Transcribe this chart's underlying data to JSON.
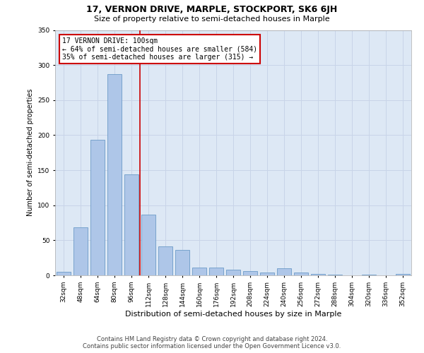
{
  "title": "17, VERNON DRIVE, MARPLE, STOCKPORT, SK6 6JH",
  "subtitle": "Size of property relative to semi-detached houses in Marple",
  "xlabel": "Distribution of semi-detached houses by size in Marple",
  "ylabel": "Number of semi-detached properties",
  "categories": [
    "32sqm",
    "48sqm",
    "64sqm",
    "80sqm",
    "96sqm",
    "112sqm",
    "128sqm",
    "144sqm",
    "160sqm",
    "176sqm",
    "192sqm",
    "208sqm",
    "224sqm",
    "240sqm",
    "256sqm",
    "272sqm",
    "288sqm",
    "304sqm",
    "320sqm",
    "336sqm",
    "352sqm"
  ],
  "values": [
    5,
    68,
    193,
    287,
    144,
    87,
    41,
    36,
    11,
    11,
    8,
    6,
    4,
    10,
    4,
    2,
    1,
    0,
    1,
    0,
    2
  ],
  "bar_color": "#aec6e8",
  "bar_edge_color": "#5a8fc0",
  "vline_bin_index": 4,
  "annotation_title": "17 VERNON DRIVE: 100sqm",
  "annotation_line1": "← 64% of semi-detached houses are smaller (584)",
  "annotation_line2": "35% of semi-detached houses are larger (315) →",
  "vline_color": "#cc0000",
  "annotation_box_color": "#ffffff",
  "annotation_box_edge": "#cc0000",
  "footer1": "Contains HM Land Registry data © Crown copyright and database right 2024.",
  "footer2": "Contains public sector information licensed under the Open Government Licence v3.0.",
  "ylim": [
    0,
    350
  ],
  "grid_color": "#c8d4e8",
  "background_color": "#dde8f5",
  "title_fontsize": 9,
  "subtitle_fontsize": 8,
  "xlabel_fontsize": 8,
  "ylabel_fontsize": 7,
  "tick_fontsize": 6.5,
  "footer_fontsize": 6,
  "ann_fontsize": 7
}
